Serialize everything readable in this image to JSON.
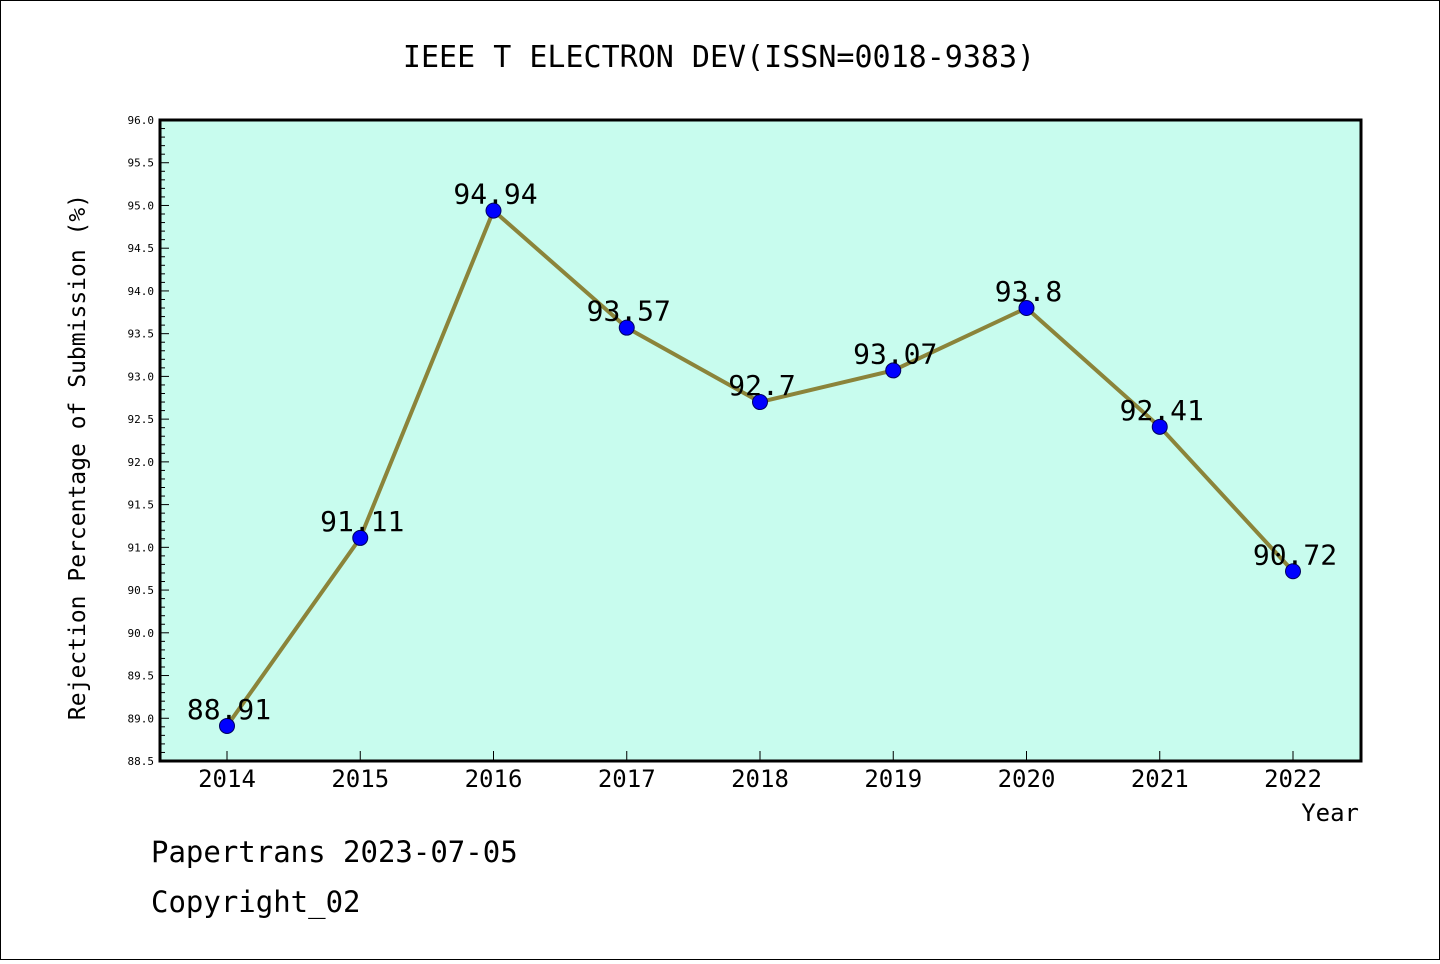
{
  "chart_data": {
    "type": "line",
    "title": "IEEE T ELECTRON DEV(ISSN=0018-9383)",
    "xlabel": "Year",
    "ylabel": "Rejection Percentage of Submission (%)",
    "categories": [
      "2014",
      "2015",
      "2016",
      "2017",
      "2018",
      "2019",
      "2020",
      "2021",
      "2022"
    ],
    "values": [
      88.91,
      91.11,
      94.94,
      93.57,
      92.7,
      93.07,
      93.8,
      92.41,
      90.72
    ],
    "data_labels": [
      "88.91",
      "91.11",
      "94.94",
      "93.57",
      "92.7",
      "93.07",
      "93.8",
      "92.41",
      "90.72"
    ],
    "ylim": [
      88.5,
      96.0
    ],
    "yticks": [
      "88.5",
      "89.0",
      "89.5",
      "90.0",
      "90.5",
      "91.0",
      "91.5",
      "92.0",
      "92.5",
      "93.0",
      "93.5",
      "94.0",
      "94.5",
      "95.0",
      "95.5",
      "96.0"
    ],
    "grid": false,
    "legend": "none",
    "colors": {
      "plot_background": "#c8fcee",
      "line": "#8b843a",
      "marker": "#0000ff"
    }
  },
  "footer": {
    "line1": "Papertrans 2023-07-05",
    "line2": "Copyright_02"
  }
}
